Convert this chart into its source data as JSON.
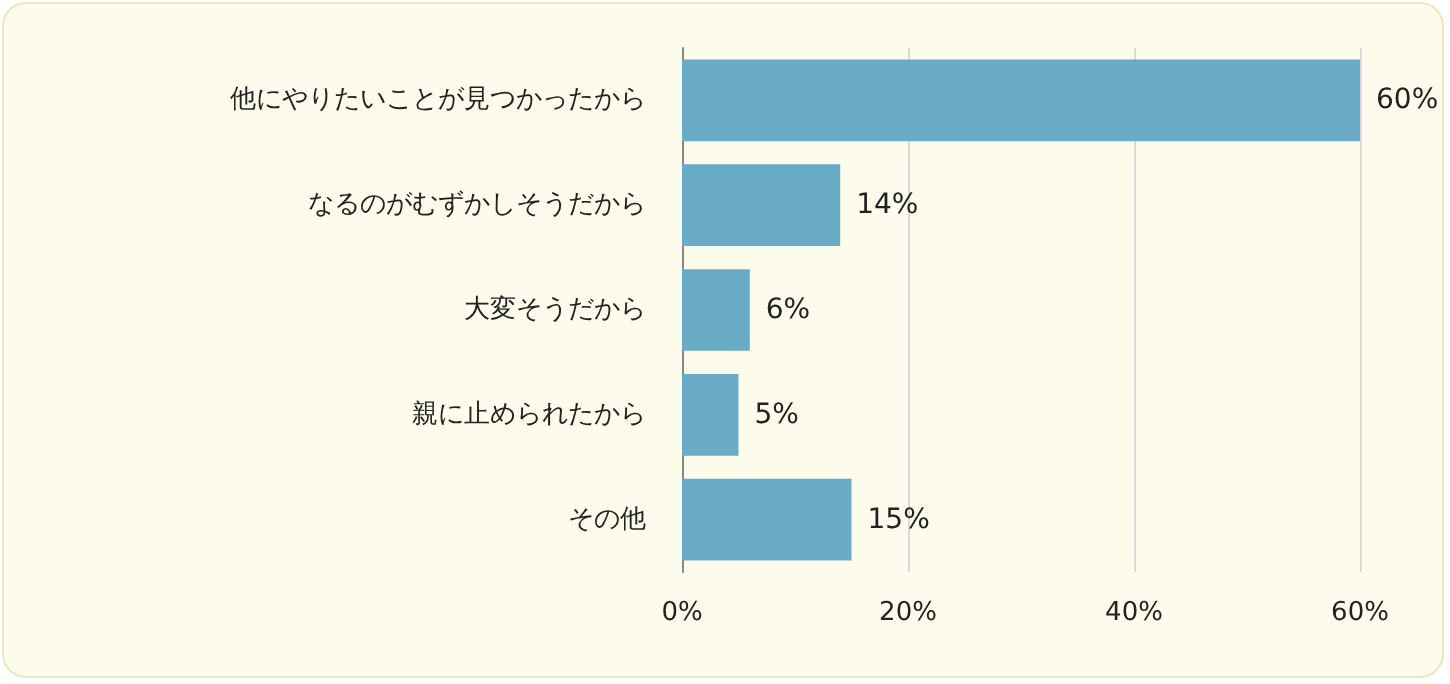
{
  "chart_data": {
    "type": "bar",
    "orientation": "horizontal",
    "categories": [
      "他にやりたいことが見つかったから",
      "なるのがむずかしそうだから",
      "大変そうだから",
      "親に止められたから",
      "その他"
    ],
    "values": [
      60,
      14,
      6,
      5,
      15
    ],
    "value_labels": [
      "60%",
      "14%",
      "6%",
      "5%",
      "15%"
    ],
    "color": "#6aabc6",
    "xlim": [
      0,
      60
    ],
    "xticks": [
      {
        "value": 0,
        "label": "0%"
      },
      {
        "value": 20,
        "label": "20%"
      },
      {
        "value": 40,
        "label": "40%"
      },
      {
        "value": 60,
        "label": "60%"
      }
    ],
    "grid": "x"
  }
}
